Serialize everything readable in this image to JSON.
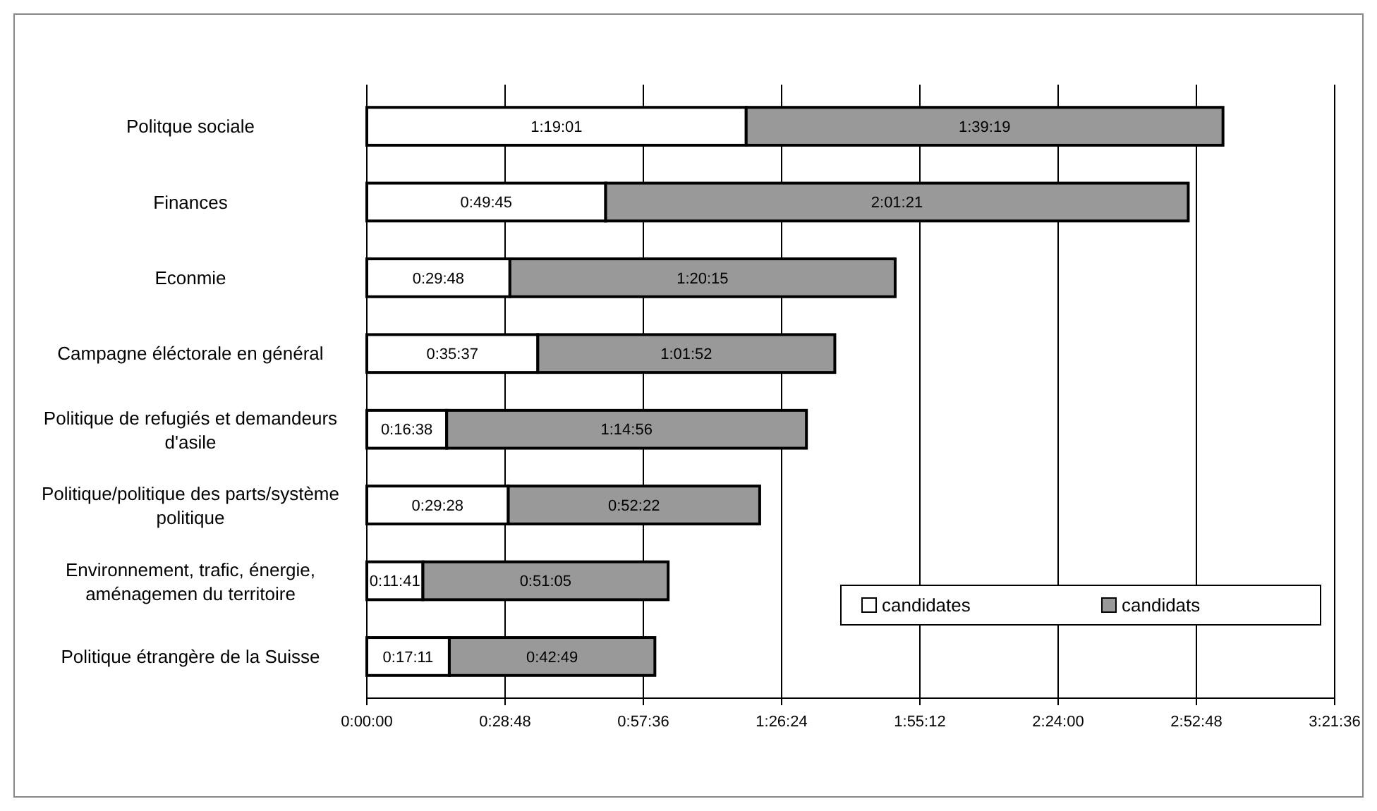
{
  "chart_data": {
    "type": "bar",
    "orientation": "horizontal",
    "stacked": true,
    "categories": [
      "Politque sociale",
      "Finances",
      "Econmie",
      "Campagne éléctorale en général",
      "Politique de refugiés et demandeurs d'asile",
      "Politique/politique des parts/système politique",
      "Environnement, trafic, énergie, aménagemen du territoire",
      "Politique étrangère de la Suisse"
    ],
    "series": [
      {
        "name": "candidates",
        "color": "#ffffff",
        "values": [
          4741,
          2985,
          1788,
          2137,
          998,
          1768,
          701,
          1031
        ],
        "value_labels": [
          "1:19:01",
          "0:49:45",
          "0:29:48",
          "0:35:37",
          "0:16:38",
          "0:29:28",
          "0:11:41",
          "0:17:11"
        ]
      },
      {
        "name": "candidats",
        "color": "#999999",
        "values": [
          5959,
          7281,
          4815,
          3712,
          4496,
          3142,
          3065,
          2569
        ],
        "value_labels": [
          "1:39:19",
          "2:01:21",
          "1:20:15",
          "1:01:52",
          "1:14:56",
          "0:52:22",
          "0:51:05",
          "0:42:49"
        ]
      }
    ],
    "xlim": [
      0,
      12096
    ],
    "xticks": [
      {
        "value": 0,
        "label": "0:00:00"
      },
      {
        "value": 1728,
        "label": "0:28:48"
      },
      {
        "value": 3456,
        "label": "0:57:36"
      },
      {
        "value": 5184,
        "label": "1:26:24"
      },
      {
        "value": 6912,
        "label": "1:55:12"
      },
      {
        "value": 8640,
        "label": "2:24:00"
      },
      {
        "value": 10368,
        "label": "2:52:48"
      },
      {
        "value": 12096,
        "label": "3:21:36"
      }
    ],
    "grid": "x",
    "legend": "bottom right"
  }
}
